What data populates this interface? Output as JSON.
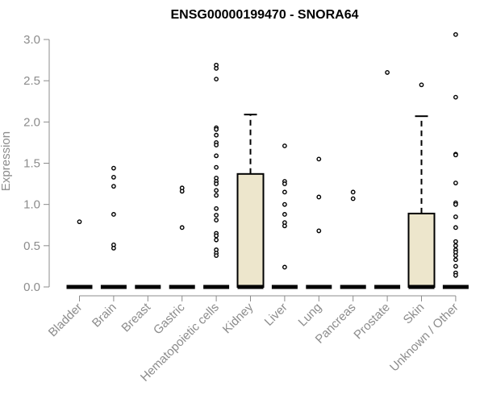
{
  "chart_data": {
    "type": "boxplot",
    "title": "ENSG00000199470 - SNORA64",
    "xlabel": "",
    "ylabel": "Expression",
    "ylim": [
      0,
      3.0
    ],
    "yticks": [
      "0.0",
      "0.5",
      "1.0",
      "1.5",
      "2.0",
      "2.5",
      "3.0"
    ],
    "grid": false,
    "colors": {
      "box_fill": "#ede6cc",
      "stroke": "#000000",
      "axis": "#8c8c8c"
    },
    "categories": [
      "Bladder",
      "Brain",
      "Breast",
      "Gastric",
      "Hematopoietic cells",
      "Kidney",
      "Liver",
      "Lung",
      "Pancreas",
      "Prostate",
      "Skin",
      "Unknown / Other"
    ],
    "boxes": [
      {
        "category": "Bladder",
        "q1": 0,
        "median": 0,
        "q3": 0,
        "whisker_low": 0,
        "whisker_high": 0,
        "outliers": [
          0.79
        ]
      },
      {
        "category": "Brain",
        "q1": 0,
        "median": 0,
        "q3": 0,
        "whisker_low": 0,
        "whisker_high": 0,
        "outliers": [
          1.44,
          1.33,
          1.22,
          0.88,
          0.51,
          0.47
        ]
      },
      {
        "category": "Breast",
        "q1": 0,
        "median": 0,
        "q3": 0,
        "whisker_low": 0,
        "whisker_high": 0,
        "outliers": []
      },
      {
        "category": "Gastric",
        "q1": 0,
        "median": 0,
        "q3": 0,
        "whisker_low": 0,
        "whisker_high": 0,
        "outliers": [
          1.2,
          1.16,
          0.72
        ]
      },
      {
        "category": "Hematopoietic cells",
        "q1": 0,
        "median": 0,
        "q3": 0,
        "whisker_low": 0,
        "whisker_high": 0,
        "outliers": [
          2.69,
          2.65,
          2.52,
          1.93,
          1.91,
          1.84,
          1.75,
          1.72,
          1.59,
          1.45,
          1.32,
          1.28,
          1.25,
          1.17,
          1.11,
          0.95,
          0.87,
          0.81,
          0.65,
          0.62,
          0.57,
          0.45,
          0.41,
          0.38
        ]
      },
      {
        "category": "Kidney",
        "q1": 0,
        "median": 0,
        "q3": 1.37,
        "whisker_low": 0,
        "whisker_high": 2.09,
        "outliers": []
      },
      {
        "category": "Liver",
        "q1": 0,
        "median": 0,
        "q3": 0,
        "whisker_low": 0,
        "whisker_high": 0,
        "outliers": [
          1.71,
          1.28,
          1.25,
          1.15,
          1.0,
          0.88,
          0.78,
          0.74,
          0.24
        ]
      },
      {
        "category": "Lung",
        "q1": 0,
        "median": 0,
        "q3": 0,
        "whisker_low": 0,
        "whisker_high": 0,
        "outliers": [
          1.55,
          1.09,
          0.68
        ]
      },
      {
        "category": "Pancreas",
        "q1": 0,
        "median": 0,
        "q3": 0,
        "whisker_low": 0,
        "whisker_high": 0,
        "outliers": [
          1.15,
          1.07
        ]
      },
      {
        "category": "Prostate",
        "q1": 0,
        "median": 0,
        "q3": 0,
        "whisker_low": 0,
        "whisker_high": 0,
        "outliers": [
          2.6
        ]
      },
      {
        "category": "Skin",
        "q1": 0,
        "median": 0,
        "q3": 0.89,
        "whisker_low": 0,
        "whisker_high": 2.07,
        "outliers": [
          2.45
        ]
      },
      {
        "category": "Unknown / Other",
        "q1": 0,
        "median": 0,
        "q3": 0,
        "whisker_low": 0,
        "whisker_high": 0,
        "outliers": [
          3.06,
          2.3,
          1.61,
          1.6,
          1.26,
          1.02,
          1.0,
          0.85,
          0.72,
          0.55,
          0.5,
          0.45,
          0.42,
          0.38,
          0.33,
          0.25,
          0.17,
          0.14
        ]
      }
    ]
  }
}
